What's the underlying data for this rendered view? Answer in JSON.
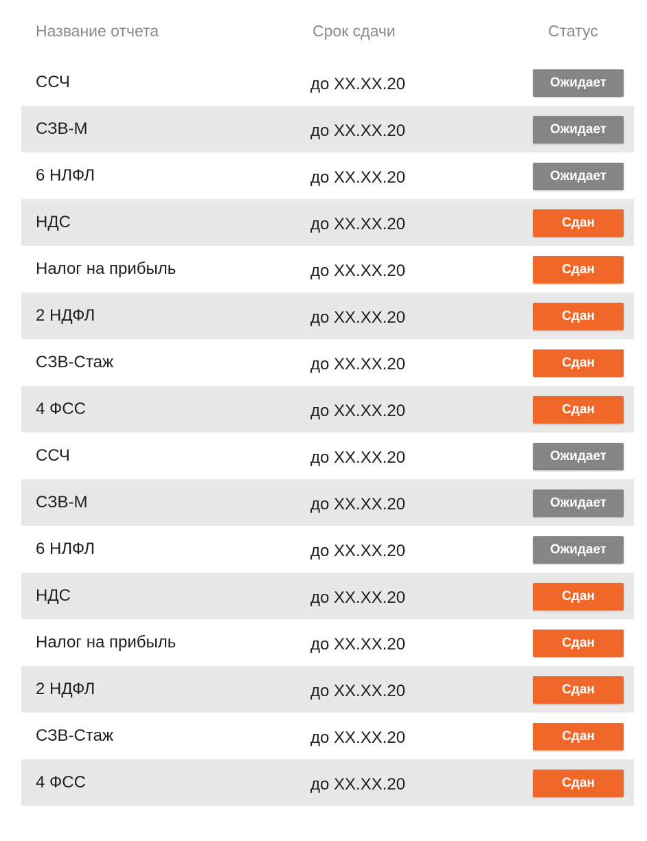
{
  "table": {
    "headers": {
      "name": "Название отчета",
      "deadline": "Срок сдачи",
      "status": "Статус"
    },
    "rows": [
      {
        "name": "ССЧ",
        "deadline": "до XX.XX.20",
        "status": "Ожидает",
        "state": "waiting"
      },
      {
        "name": "СЗВ-М",
        "deadline": "до XX.XX.20",
        "status": "Ожидает",
        "state": "waiting"
      },
      {
        "name": "6 НЛФЛ",
        "deadline": "до XX.XX.20",
        "status": "Ожидает",
        "state": "waiting"
      },
      {
        "name": "НДС",
        "deadline": "до XX.XX.20",
        "status": "Сдан",
        "state": "done"
      },
      {
        "name": "Налог на прибыль",
        "deadline": "до XX.XX.20",
        "status": "Сдан",
        "state": "done"
      },
      {
        "name": "2 НДФЛ",
        "deadline": "до XX.XX.20",
        "status": "Сдан",
        "state": "done"
      },
      {
        "name": "СЗВ-Стаж",
        "deadline": "до XX.XX.20",
        "status": "Сдан",
        "state": "done"
      },
      {
        "name": "4 ФСС",
        "deadline": "до XX.XX.20",
        "status": "Сдан",
        "state": "done"
      },
      {
        "name": "ССЧ",
        "deadline": "до XX.XX.20",
        "status": "Ожидает",
        "state": "waiting"
      },
      {
        "name": "СЗВ-М",
        "deadline": "до XX.XX.20",
        "status": "Ожидает",
        "state": "waiting"
      },
      {
        "name": "6 НЛФЛ",
        "deadline": "до XX.XX.20",
        "status": "Ожидает",
        "state": "waiting"
      },
      {
        "name": "НДС",
        "deadline": "до XX.XX.20",
        "status": "Сдан",
        "state": "done"
      },
      {
        "name": "Налог на прибыль",
        "deadline": "до XX.XX.20",
        "status": "Сдан",
        "state": "done"
      },
      {
        "name": "2 НДФЛ",
        "deadline": "до XX.XX.20",
        "status": "Сдан",
        "state": "done"
      },
      {
        "name": "СЗВ-Стаж",
        "deadline": "до XX.XX.20",
        "status": "Сдан",
        "state": "done"
      },
      {
        "name": "4 ФСС",
        "deadline": "до XX.XX.20",
        "status": "Сдан",
        "state": "done"
      }
    ]
  },
  "colors": {
    "waiting_badge": "#858585",
    "done_badge": "#f0672a",
    "row_shade": "#e8e8e8",
    "header_text": "#8a8a8a"
  }
}
